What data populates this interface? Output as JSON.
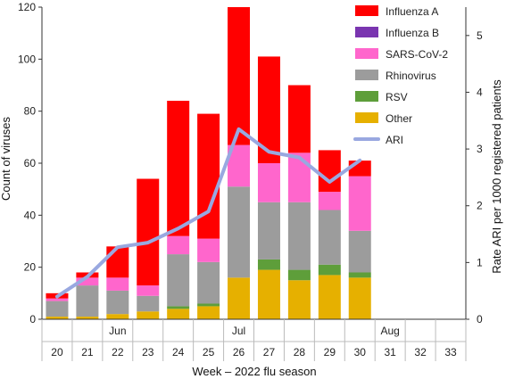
{
  "chart_data": {
    "type": "bar",
    "stacked": true,
    "categories": [
      "20",
      "21",
      "22",
      "23",
      "24",
      "25",
      "26",
      "27",
      "28",
      "29",
      "30",
      "31",
      "32",
      "33"
    ],
    "month_labels": [
      {
        "label": "Jun",
        "category": "22"
      },
      {
        "label": "Jul",
        "category": "26"
      },
      {
        "label": "Aug",
        "category": "31"
      }
    ],
    "series": [
      {
        "name": "Other",
        "color": "#e6b000",
        "values": [
          1,
          1,
          2,
          3,
          4,
          5,
          16,
          19,
          15,
          17,
          16,
          0,
          0,
          0
        ]
      },
      {
        "name": "RSV",
        "color": "#5e9e3a",
        "values": [
          0,
          0,
          0,
          0,
          1,
          1,
          0,
          4,
          4,
          4,
          2,
          0,
          0,
          0
        ]
      },
      {
        "name": "Rhinovirus",
        "color": "#9c9c9c",
        "values": [
          6,
          12,
          9,
          6,
          20,
          16,
          35,
          22,
          26,
          21,
          16,
          0,
          0,
          0
        ]
      },
      {
        "name": "SARS-CoV-2",
        "color": "#ff66cc",
        "values": [
          1,
          3,
          5,
          4,
          7,
          9,
          16,
          15,
          19,
          7,
          21,
          0,
          0,
          0
        ]
      },
      {
        "name": "Influenza B",
        "color": "#7a35b0",
        "values": [
          0,
          0,
          0,
          0,
          0,
          0,
          0,
          0,
          0,
          0,
          0,
          0,
          0,
          0
        ]
      },
      {
        "name": "Influenza A",
        "color": "#ff0000",
        "values": [
          2,
          2,
          12,
          41,
          52,
          48,
          53,
          41,
          26,
          16,
          6,
          0,
          0,
          0
        ]
      }
    ],
    "line": {
      "name": "ARI",
      "color": "#99a8e0",
      "axis": "right",
      "values": [
        0.4,
        0.75,
        1.27,
        1.35,
        1.6,
        1.9,
        3.35,
        2.95,
        2.85,
        2.42,
        2.8,
        null,
        null,
        null
      ]
    },
    "legend": [
      "Influenza A",
      "Influenza B",
      "SARS-CoV-2",
      "Rhinovirus",
      "RSV",
      "Other",
      "ARI"
    ],
    "legend_position": "top-right",
    "xlabel": "Week – 2022 flu season",
    "ylabel": "Count of viruses",
    "y2label": "Rate ARI per 1000 registered patients",
    "ylim": [
      0,
      120
    ],
    "yticks": [
      0,
      20,
      40,
      60,
      80,
      100,
      120
    ],
    "y2lim": [
      0,
      5.5
    ],
    "y2ticks": [
      0,
      1,
      2,
      3,
      4,
      5
    ],
    "grid": false
  }
}
